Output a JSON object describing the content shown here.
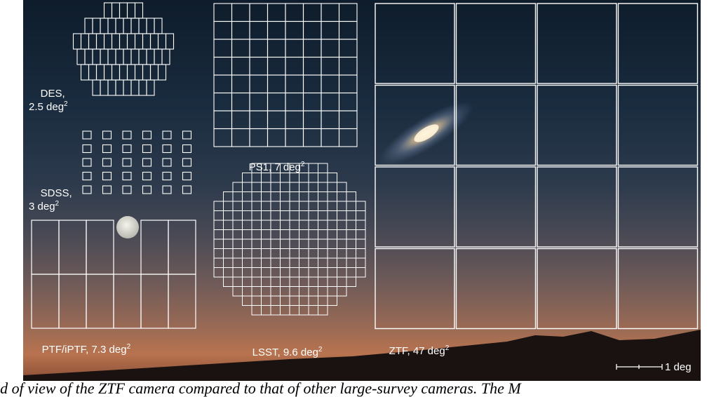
{
  "labels": {
    "des": {
      "name": "DES,",
      "area": "2.5 deg",
      "exp": "2"
    },
    "sdss": {
      "name": "SDSS,",
      "area": "3 deg",
      "exp": "2"
    },
    "ps1": {
      "text": "PS1, 7 deg",
      "exp": "2"
    },
    "ptf": {
      "text": "PTF/iPTF, 7.3 deg",
      "exp": "2"
    },
    "lsst": {
      "text": "LSST, 9.6 deg",
      "exp": "2"
    },
    "ztf": {
      "text": "ZTF, 47 deg",
      "exp": "2"
    },
    "scale": "1 deg"
  },
  "caption": "ld of view of the ZTF camera compared to that of other large-survey cameras. The M",
  "colors": {
    "lines": "#ffffff",
    "moon": "#e6e6e0",
    "galaxy_core": "#f4e6c8"
  }
}
